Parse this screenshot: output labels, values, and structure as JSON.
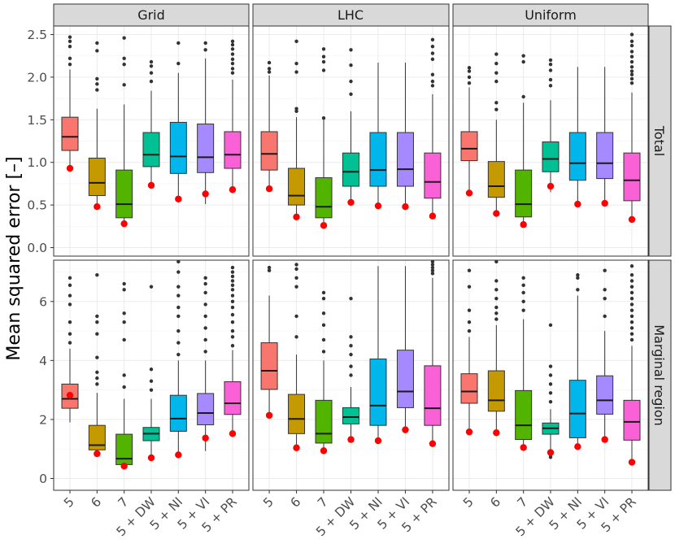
{
  "chart_data": {
    "type": "boxplot",
    "ylabel": "Mean squared error [–]",
    "columns": [
      "Grid",
      "LHC",
      "Uniform"
    ],
    "rows": [
      "Total",
      "Marginal region"
    ],
    "categories": [
      "5",
      "6",
      "7",
      "5 + DW",
      "5 + NI",
      "5 + VI",
      "5 + PR"
    ],
    "colors": [
      "#F8766D",
      "#C49A00",
      "#53B400",
      "#00C094",
      "#00B6EB",
      "#A58AFF",
      "#FB61D7"
    ],
    "red_dot_color": "#ff0000",
    "y_axes": [
      {
        "row": "Total",
        "ylim": [
          -0.1,
          2.6
        ],
        "ticks": [
          0.0,
          0.5,
          1.0,
          1.5,
          2.0,
          2.5
        ],
        "tick_labels": [
          "0.0",
          "0.5",
          "1.0",
          "1.5",
          "2.0",
          "2.5"
        ]
      },
      {
        "row": "Marginal region",
        "ylim": [
          -0.4,
          7.4
        ],
        "ticks": [
          0,
          2,
          4,
          6
        ],
        "tick_labels": [
          "0",
          "2",
          "4",
          "6"
        ]
      }
    ],
    "panels": [
      {
        "row": "Total",
        "column": "Grid",
        "boxes": [
          {
            "q1": 1.14,
            "median": 1.3,
            "q3": 1.53,
            "lo": 0.92,
            "hi": 2.09,
            "outliers": [
              2.15,
              2.22,
              2.36,
              2.42,
              2.47
            ],
            "red": 0.93
          },
          {
            "q1": 0.61,
            "median": 0.76,
            "q3": 1.05,
            "lo": 0.48,
            "hi": 1.63,
            "outliers": [
              1.85,
              1.92,
              1.98,
              2.31,
              2.4
            ],
            "red": 0.48
          },
          {
            "q1": 0.35,
            "median": 0.51,
            "q3": 0.91,
            "lo": 0.28,
            "hi": 1.68,
            "outliers": [
              1.91,
              2.15,
              2.22,
              2.46
            ],
            "red": 0.28
          },
          {
            "q1": 0.95,
            "median": 1.09,
            "q3": 1.35,
            "lo": 0.74,
            "hi": 1.84,
            "outliers": [
              1.95,
              2.05,
              2.13,
              2.18
            ],
            "red": 0.73
          },
          {
            "q1": 0.87,
            "median": 1.07,
            "q3": 1.47,
            "lo": 0.58,
            "hi": 2.05,
            "outliers": [
              2.16,
              2.4
            ],
            "red": 0.57
          },
          {
            "q1": 0.88,
            "median": 1.06,
            "q3": 1.45,
            "lo": 0.51,
            "hi": 2.22,
            "outliers": [
              2.32,
              2.4
            ],
            "red": 0.63
          },
          {
            "q1": 0.93,
            "median": 1.09,
            "q3": 1.36,
            "lo": 0.68,
            "hi": 1.97,
            "outliers": [
              2.05,
              2.1,
              2.16,
              2.21,
              2.27,
              2.33,
              2.38,
              2.42
            ],
            "red": 0.68
          }
        ]
      },
      {
        "row": "Total",
        "column": "LHC",
        "boxes": [
          {
            "q1": 0.91,
            "median": 1.1,
            "q3": 1.36,
            "lo": 0.69,
            "hi": 2.02,
            "outliers": [
              2.06,
              2.1,
              2.17
            ],
            "red": 0.69
          },
          {
            "q1": 0.5,
            "median": 0.61,
            "q3": 0.93,
            "lo": 0.36,
            "hi": 1.53,
            "outliers": [
              1.6,
              1.63,
              2.06,
              2.16,
              2.42
            ],
            "red": 0.36
          },
          {
            "q1": 0.35,
            "median": 0.48,
            "q3": 0.82,
            "lo": 0.26,
            "hi": 1.5,
            "outliers": [
              1.52,
              2.08,
              2.18,
              2.24,
              2.33
            ],
            "red": 0.26
          },
          {
            "q1": 0.72,
            "median": 0.89,
            "q3": 1.11,
            "lo": 0.53,
            "hi": 1.6,
            "outliers": [
              1.8,
              1.95,
              2.14,
              2.32
            ],
            "red": 0.53
          },
          {
            "q1": 0.72,
            "median": 0.91,
            "q3": 1.35,
            "lo": 0.49,
            "hi": 2.17,
            "outliers": [],
            "red": 0.49
          },
          {
            "q1": 0.72,
            "median": 0.92,
            "q3": 1.35,
            "lo": 0.48,
            "hi": 2.17,
            "outliers": [],
            "red": 0.48
          },
          {
            "q1": 0.58,
            "median": 0.77,
            "q3": 1.11,
            "lo": 0.37,
            "hi": 1.8,
            "outliers": [
              1.9,
              1.95,
              2.03,
              2.21,
              2.28,
              2.36,
              2.44
            ],
            "red": 0.37
          }
        ]
      },
      {
        "row": "Total",
        "column": "Uniform",
        "boxes": [
          {
            "q1": 1.02,
            "median": 1.16,
            "q3": 1.36,
            "lo": 0.64,
            "hi": 1.88,
            "outliers": [
              1.93,
              2.0,
              2.07,
              2.11
            ],
            "red": 0.64
          },
          {
            "q1": 0.59,
            "median": 0.72,
            "q3": 1.01,
            "lo": 0.4,
            "hi": 1.5,
            "outliers": [
              1.62,
              1.7,
              1.95,
              2.05,
              2.16,
              2.27
            ],
            "red": 0.4
          },
          {
            "q1": 0.36,
            "median": 0.51,
            "q3": 0.91,
            "lo": 0.27,
            "hi": 1.7,
            "outliers": [
              1.77,
              2.18,
              2.25
            ],
            "red": 0.27
          },
          {
            "q1": 0.89,
            "median": 1.04,
            "q3": 1.24,
            "lo": 0.65,
            "hi": 1.73,
            "outliers": [
              1.9,
              1.97,
              2.08,
              2.15,
              2.2
            ],
            "red": 0.72
          },
          {
            "q1": 0.79,
            "median": 0.99,
            "q3": 1.35,
            "lo": 0.52,
            "hi": 2.12,
            "outliers": [],
            "red": 0.51
          },
          {
            "q1": 0.81,
            "median": 0.99,
            "q3": 1.35,
            "lo": 0.52,
            "hi": 2.12,
            "outliers": [],
            "red": 0.52
          },
          {
            "q1": 0.55,
            "median": 0.79,
            "q3": 1.11,
            "lo": 0.34,
            "hi": 1.82,
            "outliers": [
              1.93,
              1.98,
              2.03,
              2.07,
              2.12,
              2.18,
              2.24,
              2.3,
              2.37,
              2.42,
              2.5
            ],
            "red": 0.33
          }
        ]
      },
      {
        "row": "Marginal region",
        "column": "Grid",
        "boxes": [
          {
            "q1": 2.38,
            "median": 2.7,
            "q3": 3.2,
            "lo": 1.9,
            "hi": 4.4,
            "outliers": [
              4.6,
              4.9,
              5.3,
              5.9,
              6.2,
              6.55,
              6.8
            ],
            "red": 2.82
          },
          {
            "q1": 0.97,
            "median": 1.13,
            "q3": 1.8,
            "lo": 0.8,
            "hi": 2.9,
            "outliers": [
              3.2,
              3.4,
              3.6,
              4.1,
              4.9,
              5.3,
              5.5,
              6.9
            ],
            "red": 0.84
          },
          {
            "q1": 0.47,
            "median": 0.67,
            "q3": 1.5,
            "lo": 0.4,
            "hi": 2.7,
            "outliers": [
              3.1,
              3.5,
              4.7,
              5.3,
              5.6,
              6.4,
              6.6
            ],
            "red": 0.42
          },
          {
            "q1": 1.28,
            "median": 1.52,
            "q3": 1.73,
            "lo": 0.71,
            "hi": 2.7,
            "outliers": [
              3.0,
              3.3,
              3.7,
              6.5
            ],
            "red": 0.7
          },
          {
            "q1": 1.6,
            "median": 2.03,
            "q3": 2.82,
            "lo": 0.8,
            "hi": 4.0,
            "outliers": [
              4.2,
              4.6,
              5.0,
              5.5,
              5.8,
              6.2,
              6.5,
              7.0,
              7.35
            ],
            "red": 0.8
          },
          {
            "q1": 1.82,
            "median": 2.22,
            "q3": 2.88,
            "lo": 0.93,
            "hi": 4.0,
            "outliers": [
              4.3,
              4.7,
              5.1,
              5.5,
              5.9,
              6.3,
              6.6,
              6.8
            ],
            "red": 1.37
          },
          {
            "q1": 2.17,
            "median": 2.55,
            "q3": 3.28,
            "lo": 1.52,
            "hi": 4.35,
            "outliers": [
              4.5,
              4.8,
              5.0,
              5.3,
              5.55,
              5.8,
              6.0,
              6.2,
              6.4,
              6.55,
              6.7,
              6.85,
              7.0,
              7.15
            ],
            "red": 1.52
          }
        ]
      },
      {
        "row": "Marginal region",
        "column": "LHC",
        "boxes": [
          {
            "q1": 3.02,
            "median": 3.65,
            "q3": 4.6,
            "lo": 2.15,
            "hi": 6.2,
            "outliers": [
              7.05,
              7.15
            ],
            "red": 2.14
          },
          {
            "q1": 1.52,
            "median": 2.02,
            "q3": 2.85,
            "lo": 1.05,
            "hi": 4.2,
            "outliers": [
              4.8,
              5.5,
              6.5,
              6.8,
              7.1,
              7.25
            ],
            "red": 1.04
          },
          {
            "q1": 1.2,
            "median": 1.52,
            "q3": 2.65,
            "lo": 0.95,
            "hi": 4.0,
            "outliers": [
              4.3,
              4.7,
              5.2,
              5.6,
              6.1,
              6.3
            ],
            "red": 0.94
          },
          {
            "q1": 1.85,
            "median": 2.08,
            "q3": 2.4,
            "lo": 1.32,
            "hi": 3.1,
            "outliers": [
              3.5,
              3.8,
              4.2,
              4.5,
              4.8,
              6.1
            ],
            "red": 1.32
          },
          {
            "q1": 1.8,
            "median": 2.47,
            "q3": 4.05,
            "lo": 1.3,
            "hi": 7.2,
            "outliers": [],
            "red": 1.28
          },
          {
            "q1": 2.4,
            "median": 2.95,
            "q3": 4.35,
            "lo": 1.65,
            "hi": 7.2,
            "outliers": [],
            "red": 1.65
          },
          {
            "q1": 1.8,
            "median": 2.38,
            "q3": 3.82,
            "lo": 1.18,
            "hi": 6.8,
            "outliers": [
              6.95,
              7.05,
              7.15,
              7.25,
              7.35
            ],
            "red": 1.18
          }
        ]
      },
      {
        "row": "Marginal region",
        "column": "Uniform",
        "boxes": [
          {
            "q1": 2.55,
            "median": 2.95,
            "q3": 3.55,
            "lo": 1.58,
            "hi": 4.8,
            "outliers": [
              5.0,
              5.3,
              5.7,
              6.5,
              7.05
            ],
            "red": 1.58
          },
          {
            "q1": 2.28,
            "median": 2.65,
            "q3": 3.65,
            "lo": 1.55,
            "hi": 5.2,
            "outliers": [
              5.4,
              5.6,
              5.8,
              6.1,
              6.4,
              6.7,
              7.35
            ],
            "red": 1.55
          },
          {
            "q1": 1.32,
            "median": 1.8,
            "q3": 2.98,
            "lo": 1.05,
            "hi": 5.4,
            "outliers": [
              5.7,
              6.0,
              6.3,
              6.55,
              6.8
            ],
            "red": 1.05
          },
          {
            "q1": 1.5,
            "median": 1.7,
            "q3": 1.88,
            "lo": 0.86,
            "hi": 2.35,
            "outliers": [
              0.72,
              0.8,
              2.6,
              2.9,
              3.2,
              3.5,
              3.8,
              5.2
            ],
            "red": 0.88
          },
          {
            "q1": 1.38,
            "median": 2.2,
            "q3": 3.33,
            "lo": 1.08,
            "hi": 6.2,
            "outliers": [
              6.4,
              6.8,
              6.9
            ],
            "red": 1.08
          },
          {
            "q1": 2.18,
            "median": 2.65,
            "q3": 3.48,
            "lo": 1.32,
            "hi": 5.0,
            "outliers": [
              5.5,
              6.1,
              6.4,
              7.05
            ],
            "red": 1.32
          },
          {
            "q1": 1.3,
            "median": 1.92,
            "q3": 2.65,
            "lo": 0.58,
            "hi": 4.5,
            "outliers": [
              4.7,
              4.9,
              5.1,
              5.3,
              5.5,
              5.7,
              5.9,
              6.1,
              6.3,
              6.5,
              6.7,
              6.9,
              7.2
            ],
            "red": 0.55
          }
        ]
      }
    ]
  }
}
